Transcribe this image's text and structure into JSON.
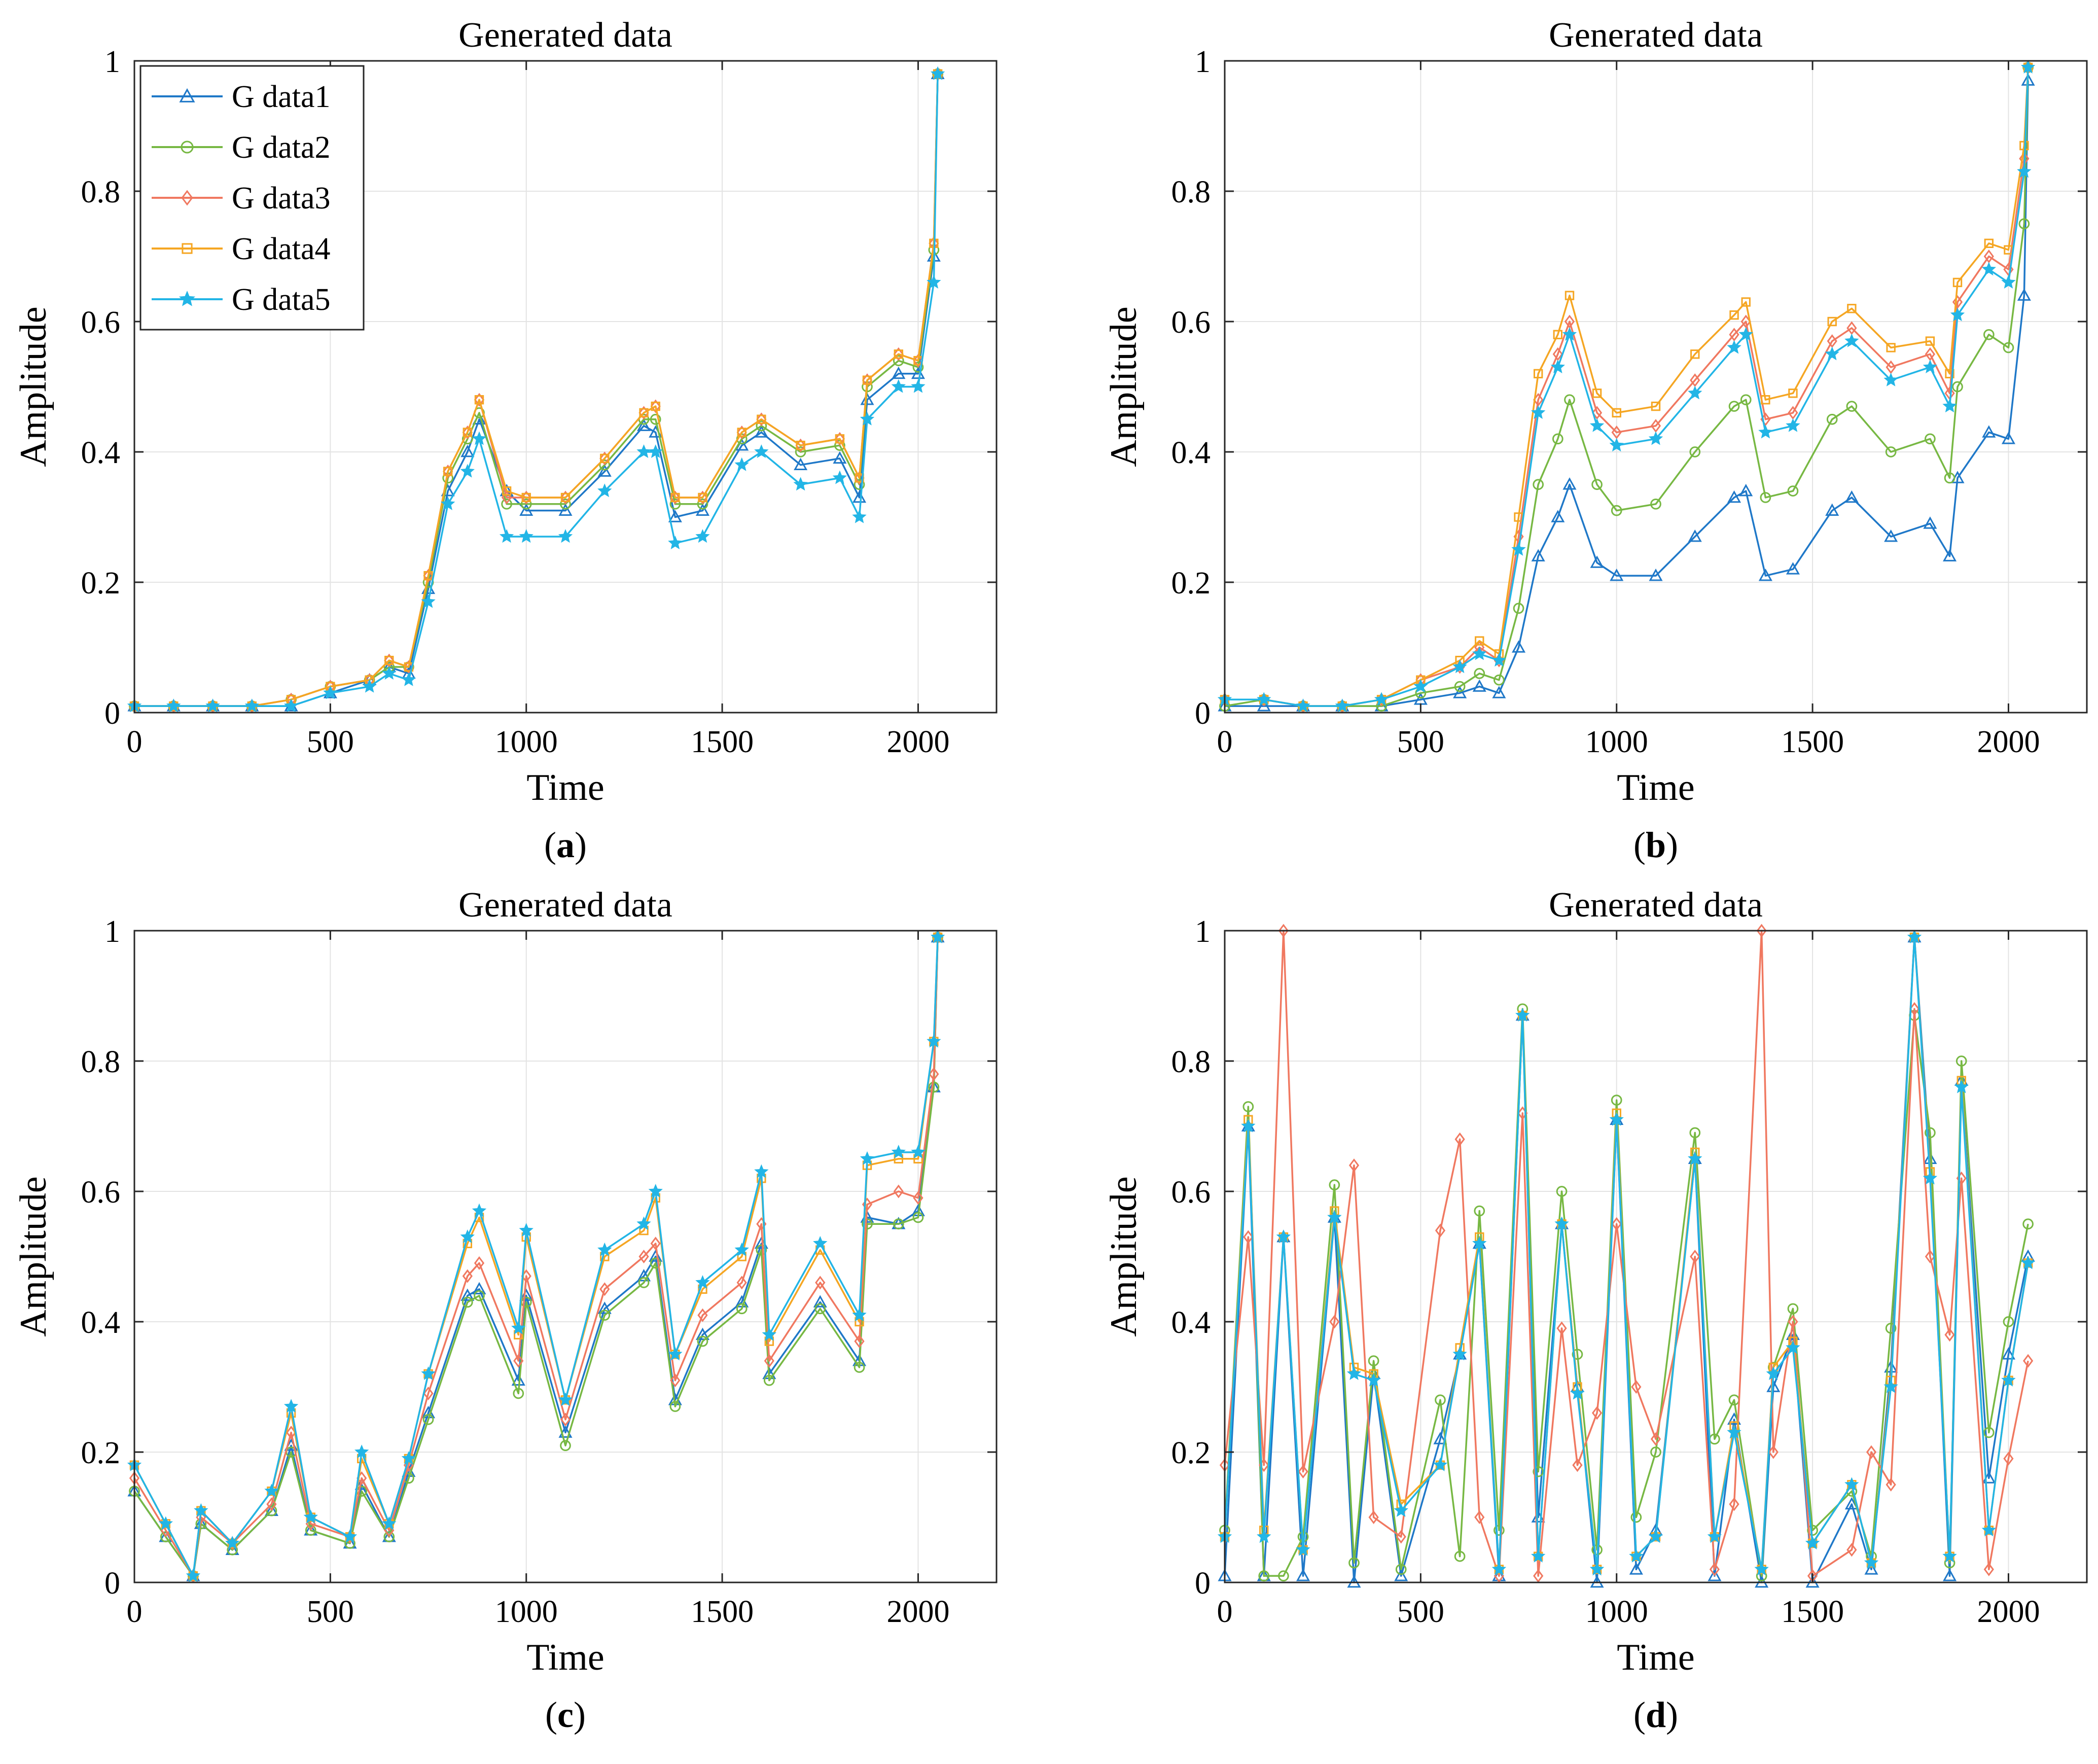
{
  "figure": {
    "panels_layout": "2x2",
    "series_colors": [
      "#1f78c8",
      "#77b843",
      "#f07860",
      "#f5a623",
      "#22b5e6"
    ],
    "series_markers": [
      "triangle",
      "circle",
      "diamond",
      "square",
      "star"
    ]
  },
  "chart_data": [
    {
      "type": "line",
      "panel": "(a)",
      "panel_letter": "a",
      "title": "Generated data",
      "xlabel": "Time",
      "ylabel": "Amplitude",
      "xlim": [
        0,
        2200
      ],
      "ylim": [
        0,
        1
      ],
      "xticks": [
        0,
        500,
        1000,
        1500,
        2000
      ],
      "yticks": [
        0,
        0.2,
        0.4,
        0.6,
        0.8,
        1
      ],
      "xtick_labels": [
        "0",
        "500",
        "1000",
        "1500",
        "2000"
      ],
      "ytick_labels": [
        "0",
        "0.2",
        "0.4",
        "0.6",
        "0.8",
        "1"
      ],
      "grid": true,
      "legend": {
        "placement": "top-left",
        "entries": [
          "G data1",
          "G data2",
          "G data3",
          "G data4",
          "G data5"
        ]
      },
      "x": [
        0,
        100,
        200,
        300,
        400,
        500,
        600,
        650,
        700,
        750,
        800,
        850,
        880,
        950,
        1000,
        1100,
        1200,
        1300,
        1330,
        1380,
        1450,
        1550,
        1600,
        1700,
        1800,
        1850,
        1870,
        1950,
        2000,
        2040,
        2050
      ],
      "series": [
        {
          "name": "G data1",
          "values": [
            0.01,
            0.01,
            0.01,
            0.01,
            0.01,
            0.03,
            0.05,
            0.07,
            0.06,
            0.19,
            0.34,
            0.4,
            0.45,
            0.34,
            0.31,
            0.31,
            0.37,
            0.44,
            0.43,
            0.3,
            0.31,
            0.41,
            0.43,
            0.38,
            0.39,
            0.33,
            0.48,
            0.52,
            0.52,
            0.7,
            0.98
          ]
        },
        {
          "name": "G data2",
          "values": [
            0.01,
            0.01,
            0.01,
            0.01,
            0.02,
            0.04,
            0.05,
            0.07,
            0.07,
            0.2,
            0.36,
            0.42,
            0.46,
            0.32,
            0.32,
            0.32,
            0.38,
            0.45,
            0.45,
            0.32,
            0.32,
            0.42,
            0.44,
            0.4,
            0.41,
            0.35,
            0.5,
            0.54,
            0.53,
            0.71,
            0.98
          ]
        },
        {
          "name": "G data3",
          "values": [
            0.01,
            0.01,
            0.01,
            0.01,
            0.02,
            0.04,
            0.05,
            0.08,
            0.07,
            0.21,
            0.37,
            0.43,
            0.48,
            0.33,
            0.33,
            0.33,
            0.39,
            0.46,
            0.47,
            0.33,
            0.33,
            0.43,
            0.45,
            0.41,
            0.42,
            0.36,
            0.51,
            0.55,
            0.54,
            0.72,
            0.98
          ]
        },
        {
          "name": "G data4",
          "values": [
            0.01,
            0.01,
            0.01,
            0.01,
            0.02,
            0.04,
            0.05,
            0.08,
            0.07,
            0.21,
            0.37,
            0.43,
            0.48,
            0.34,
            0.33,
            0.33,
            0.39,
            0.46,
            0.47,
            0.33,
            0.33,
            0.43,
            0.45,
            0.41,
            0.42,
            0.36,
            0.51,
            0.55,
            0.54,
            0.72,
            0.98
          ]
        },
        {
          "name": "G data5",
          "values": [
            0.01,
            0.01,
            0.01,
            0.01,
            0.01,
            0.03,
            0.04,
            0.06,
            0.05,
            0.17,
            0.32,
            0.37,
            0.42,
            0.27,
            0.27,
            0.27,
            0.34,
            0.4,
            0.4,
            0.26,
            0.27,
            0.38,
            0.4,
            0.35,
            0.36,
            0.3,
            0.45,
            0.5,
            0.5,
            0.66,
            0.98
          ]
        }
      ]
    },
    {
      "type": "line",
      "panel": "(b)",
      "panel_letter": "b",
      "title": "Generated data",
      "xlabel": "Time",
      "ylabel": "Amplitude",
      "xlim": [
        0,
        2200
      ],
      "ylim": [
        0,
        1
      ],
      "xticks": [
        0,
        500,
        1000,
        1500,
        2000
      ],
      "yticks": [
        0,
        0.2,
        0.4,
        0.6,
        0.8,
        1
      ],
      "xtick_labels": [
        "0",
        "500",
        "1000",
        "1500",
        "2000"
      ],
      "ytick_labels": [
        "0",
        "0.2",
        "0.4",
        "0.6",
        "0.8",
        "1"
      ],
      "grid": true,
      "legend": null,
      "x": [
        0,
        100,
        200,
        300,
        400,
        500,
        600,
        650,
        700,
        750,
        800,
        850,
        880,
        950,
        1000,
        1100,
        1200,
        1300,
        1330,
        1380,
        1450,
        1550,
        1600,
        1700,
        1800,
        1850,
        1870,
        1950,
        2000,
        2040,
        2050
      ],
      "series": [
        {
          "name": "G data1",
          "values": [
            0.01,
            0.01,
            0.01,
            0.01,
            0.01,
            0.02,
            0.03,
            0.04,
            0.03,
            0.1,
            0.24,
            0.3,
            0.35,
            0.23,
            0.21,
            0.21,
            0.27,
            0.33,
            0.34,
            0.21,
            0.22,
            0.31,
            0.33,
            0.27,
            0.29,
            0.24,
            0.36,
            0.43,
            0.42,
            0.64,
            0.97
          ]
        },
        {
          "name": "G data2",
          "values": [
            0.01,
            0.02,
            0.01,
            0.01,
            0.01,
            0.03,
            0.04,
            0.06,
            0.05,
            0.16,
            0.35,
            0.42,
            0.48,
            0.35,
            0.31,
            0.32,
            0.4,
            0.47,
            0.48,
            0.33,
            0.34,
            0.45,
            0.47,
            0.4,
            0.42,
            0.36,
            0.5,
            0.58,
            0.56,
            0.75,
            0.99
          ]
        },
        {
          "name": "G data3",
          "values": [
            0.02,
            0.02,
            0.01,
            0.01,
            0.02,
            0.05,
            0.07,
            0.1,
            0.08,
            0.27,
            0.48,
            0.55,
            0.6,
            0.46,
            0.43,
            0.44,
            0.51,
            0.58,
            0.6,
            0.45,
            0.46,
            0.57,
            0.59,
            0.53,
            0.55,
            0.49,
            0.63,
            0.7,
            0.68,
            0.85,
            0.99
          ]
        },
        {
          "name": "G data4",
          "values": [
            0.02,
            0.02,
            0.01,
            0.01,
            0.02,
            0.05,
            0.08,
            0.11,
            0.09,
            0.3,
            0.52,
            0.58,
            0.64,
            0.49,
            0.46,
            0.47,
            0.55,
            0.61,
            0.63,
            0.48,
            0.49,
            0.6,
            0.62,
            0.56,
            0.57,
            0.52,
            0.66,
            0.72,
            0.71,
            0.87,
            0.99
          ]
        },
        {
          "name": "G data5",
          "values": [
            0.02,
            0.02,
            0.01,
            0.01,
            0.02,
            0.04,
            0.07,
            0.09,
            0.08,
            0.25,
            0.46,
            0.53,
            0.58,
            0.44,
            0.41,
            0.42,
            0.49,
            0.56,
            0.58,
            0.43,
            0.44,
            0.55,
            0.57,
            0.51,
            0.53,
            0.47,
            0.61,
            0.68,
            0.66,
            0.83,
            0.99
          ]
        }
      ]
    },
    {
      "type": "line",
      "panel": "(c)",
      "panel_letter": "c",
      "title": "Generated data",
      "xlabel": "Time",
      "ylabel": "Amplitude",
      "xlim": [
        0,
        2200
      ],
      "ylim": [
        0,
        1
      ],
      "xticks": [
        0,
        500,
        1000,
        1500,
        2000
      ],
      "yticks": [
        0,
        0.2,
        0.4,
        0.6,
        0.8,
        1
      ],
      "xtick_labels": [
        "0",
        "500",
        "1000",
        "1500",
        "2000"
      ],
      "ytick_labels": [
        "0",
        "0.2",
        "0.4",
        "0.6",
        "0.8",
        "1"
      ],
      "grid": true,
      "legend": null,
      "x": [
        0,
        80,
        150,
        170,
        250,
        350,
        400,
        450,
        550,
        580,
        650,
        700,
        750,
        850,
        880,
        980,
        1000,
        1100,
        1200,
        1300,
        1330,
        1380,
        1450,
        1550,
        1600,
        1620,
        1750,
        1850,
        1870,
        1950,
        2000,
        2040,
        2050
      ],
      "series": [
        {
          "name": "G data1",
          "values": [
            0.14,
            0.07,
            0.01,
            0.09,
            0.05,
            0.11,
            0.21,
            0.08,
            0.06,
            0.15,
            0.07,
            0.17,
            0.26,
            0.44,
            0.45,
            0.31,
            0.44,
            0.23,
            0.42,
            0.47,
            0.5,
            0.28,
            0.38,
            0.43,
            0.52,
            0.32,
            0.43,
            0.34,
            0.56,
            0.55,
            0.57,
            0.76,
            0.99
          ]
        },
        {
          "name": "G data2",
          "values": [
            0.14,
            0.07,
            0.01,
            0.09,
            0.05,
            0.11,
            0.2,
            0.08,
            0.06,
            0.14,
            0.07,
            0.16,
            0.25,
            0.43,
            0.44,
            0.29,
            0.43,
            0.21,
            0.41,
            0.46,
            0.49,
            0.27,
            0.37,
            0.42,
            0.51,
            0.31,
            0.42,
            0.33,
            0.55,
            0.55,
            0.56,
            0.76,
            0.99
          ]
        },
        {
          "name": "G data3",
          "values": [
            0.16,
            0.08,
            0.01,
            0.1,
            0.06,
            0.12,
            0.23,
            0.09,
            0.07,
            0.16,
            0.08,
            0.18,
            0.29,
            0.47,
            0.49,
            0.34,
            0.47,
            0.25,
            0.45,
            0.5,
            0.52,
            0.31,
            0.41,
            0.46,
            0.55,
            0.34,
            0.46,
            0.37,
            0.58,
            0.6,
            0.59,
            0.78,
            0.99
          ]
        },
        {
          "name": "G data4",
          "values": [
            0.18,
            0.09,
            0.01,
            0.11,
            0.06,
            0.14,
            0.26,
            0.1,
            0.07,
            0.19,
            0.09,
            0.19,
            0.32,
            0.52,
            0.56,
            0.38,
            0.53,
            0.28,
            0.5,
            0.54,
            0.59,
            0.35,
            0.45,
            0.5,
            0.62,
            0.37,
            0.51,
            0.4,
            0.64,
            0.65,
            0.65,
            0.83,
            0.99
          ]
        },
        {
          "name": "G data5",
          "values": [
            0.18,
            0.09,
            0.01,
            0.11,
            0.06,
            0.14,
            0.27,
            0.1,
            0.07,
            0.2,
            0.09,
            0.19,
            0.32,
            0.53,
            0.57,
            0.39,
            0.54,
            0.28,
            0.51,
            0.55,
            0.6,
            0.35,
            0.46,
            0.51,
            0.63,
            0.38,
            0.52,
            0.41,
            0.65,
            0.66,
            0.66,
            0.83,
            0.99
          ]
        }
      ]
    },
    {
      "type": "line",
      "panel": "(d)",
      "panel_letter": "d",
      "title": "Generated data",
      "xlabel": "Time",
      "ylabel": "Amplitude",
      "xlim": [
        0,
        2200
      ],
      "ylim": [
        0,
        1
      ],
      "xticks": [
        0,
        500,
        1000,
        1500,
        2000
      ],
      "yticks": [
        0,
        0.2,
        0.4,
        0.6,
        0.8,
        1
      ],
      "xtick_labels": [
        "0",
        "500",
        "1000",
        "1500",
        "2000"
      ],
      "ytick_labels": [
        "0",
        "0.2",
        "0.4",
        "0.6",
        "0.8",
        "1"
      ],
      "grid": true,
      "legend": null,
      "x": [
        0,
        60,
        100,
        150,
        200,
        280,
        330,
        380,
        450,
        550,
        600,
        650,
        700,
        760,
        800,
        860,
        900,
        950,
        1000,
        1050,
        1100,
        1200,
        1250,
        1300,
        1370,
        1400,
        1450,
        1500,
        1600,
        1650,
        1700,
        1760,
        1800,
        1850,
        1880,
        1950,
        2000,
        2050
      ],
      "series": [
        {
          "name": "G data1",
          "values": [
            0.01,
            0.7,
            0.01,
            0.53,
            0.01,
            0.56,
            0.0,
            0.32,
            0.01,
            0.22,
            0.35,
            0.52,
            0.01,
            0.87,
            0.1,
            0.55,
            0.3,
            0.0,
            0.71,
            0.02,
            0.08,
            0.65,
            0.01,
            0.25,
            0.0,
            0.3,
            0.38,
            0.0,
            0.12,
            0.02,
            0.33,
            0.99,
            0.65,
            0.01,
            0.77,
            0.16,
            0.35,
            0.5
          ]
        },
        {
          "name": "G data2",
          "values": [
            0.08,
            0.73,
            0.01,
            0.01,
            0.07,
            0.61,
            0.03,
            0.34,
            0.02,
            0.28,
            0.04,
            0.57,
            0.08,
            0.88,
            0.17,
            0.6,
            0.35,
            0.05,
            0.74,
            0.1,
            0.2,
            0.69,
            0.22,
            0.28,
            0.01,
            0.33,
            0.42,
            0.08,
            0.14,
            0.04,
            0.39,
            0.87,
            0.69,
            0.03,
            0.8,
            0.23,
            0.4,
            0.55
          ]
        },
        {
          "name": "G data3",
          "values": [
            0.18,
            0.53,
            0.18,
            1.0,
            0.17,
            0.4,
            0.64,
            0.1,
            0.07,
            0.54,
            0.68,
            0.1,
            0.01,
            0.72,
            0.01,
            0.39,
            0.18,
            0.26,
            0.55,
            0.3,
            0.22,
            0.5,
            0.02,
            0.12,
            1.0,
            0.2,
            0.4,
            0.01,
            0.05,
            0.2,
            0.15,
            0.88,
            0.5,
            0.38,
            0.62,
            0.02,
            0.19,
            0.34
          ]
        },
        {
          "name": "G data4",
          "values": [
            0.07,
            0.71,
            0.08,
            0.53,
            0.05,
            0.57,
            0.33,
            0.32,
            0.12,
            0.18,
            0.36,
            0.53,
            0.02,
            0.87,
            0.04,
            0.55,
            0.3,
            0.02,
            0.72,
            0.04,
            0.07,
            0.66,
            0.07,
            0.24,
            0.02,
            0.33,
            0.37,
            0.06,
            0.15,
            0.03,
            0.31,
            0.99,
            0.63,
            0.04,
            0.77,
            0.08,
            0.31,
            0.49
          ]
        },
        {
          "name": "G data5",
          "values": [
            0.07,
            0.7,
            0.07,
            0.53,
            0.05,
            0.56,
            0.32,
            0.31,
            0.11,
            0.18,
            0.35,
            0.52,
            0.02,
            0.87,
            0.04,
            0.55,
            0.29,
            0.02,
            0.71,
            0.04,
            0.07,
            0.65,
            0.07,
            0.23,
            0.02,
            0.32,
            0.36,
            0.06,
            0.15,
            0.03,
            0.3,
            0.99,
            0.62,
            0.04,
            0.76,
            0.08,
            0.31,
            0.49
          ]
        }
      ]
    }
  ]
}
